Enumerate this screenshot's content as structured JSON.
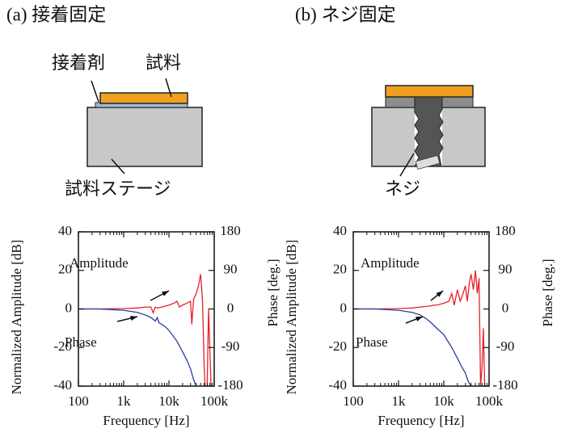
{
  "panels": [
    {
      "title": "(a) 接着固定",
      "labels": [
        "接着剤",
        "試料",
        "試料ステージ"
      ]
    },
    {
      "title": "(b) ネジ固定",
      "labels": [
        "ネジ"
      ]
    }
  ],
  "chart_data": [
    {
      "type": "line",
      "xlabel": "Frequency [Hz]",
      "ylabel": "Normalized Amplitude [dB]",
      "y2label": "Phase [deg.]",
      "log_x": true,
      "grid": false,
      "xlim": [
        100,
        100000
      ],
      "xticks": [
        100,
        {
          "value": 1000,
          "label": "1k"
        },
        {
          "value": 10000,
          "label": "10k"
        },
        {
          "value": 100000,
          "label": "100k"
        }
      ],
      "ylim": [
        -40,
        40
      ],
      "yticks": [
        -40,
        -20,
        0,
        20,
        40
      ],
      "y2lim": [
        -180,
        180
      ],
      "y2ticks": [
        -180,
        -90,
        0,
        90,
        180
      ],
      "series": [
        {
          "name": "Amplitude",
          "color": "#e8202a",
          "x": [
            100,
            300,
            1000,
            2000,
            3000,
            4000,
            4500,
            5000,
            5500,
            7000,
            10000,
            13000,
            15000,
            17000,
            20000,
            25000,
            30000,
            32000,
            35000,
            40000,
            45000,
            50000,
            55000,
            60000,
            63000,
            70000,
            75000,
            80000,
            85000
          ],
          "values": [
            0,
            0,
            0.2,
            0.5,
            1,
            1,
            -2,
            1,
            0.5,
            1,
            2,
            3,
            4,
            1,
            2,
            3,
            4,
            -8,
            5,
            8,
            12,
            18,
            5,
            -30,
            -40,
            -40,
            0,
            -20,
            -40
          ]
        },
        {
          "name": "Phase",
          "color": "#2a3aa0",
          "axis": "y2",
          "x": [
            100,
            300,
            1000,
            2000,
            3000,
            4000,
            5000,
            5500,
            6000,
            8000,
            10000,
            15000,
            20000,
            25000,
            30000,
            35000,
            40000
          ],
          "values": [
            0,
            0,
            -3,
            -8,
            -14,
            -20,
            -28,
            -20,
            -32,
            -40,
            -50,
            -75,
            -100,
            -120,
            -140,
            -165,
            -180
          ]
        }
      ]
    },
    {
      "type": "line",
      "xlabel": "Frequency [Hz]",
      "ylabel": "Normalized Amplitude [dB]",
      "y2label": "Phase [deg.]",
      "log_x": true,
      "grid": false,
      "xlim": [
        100,
        100000
      ],
      "xticks": [
        100,
        {
          "value": 1000,
          "label": "1k"
        },
        {
          "value": 10000,
          "label": "10k"
        },
        {
          "value": 100000,
          "label": "100k"
        }
      ],
      "ylim": [
        -40,
        40
      ],
      "yticks": [
        -40,
        -20,
        0,
        20,
        40
      ],
      "y2lim": [
        -180,
        180
      ],
      "y2ticks": [
        -180,
        -90,
        0,
        90,
        180
      ],
      "series": [
        {
          "name": "Amplitude",
          "color": "#e8202a",
          "x": [
            100,
            300,
            1000,
            2000,
            3000,
            5000,
            6000,
            7000,
            10000,
            13000,
            15000,
            17000,
            20000,
            23000,
            25000,
            30000,
            33000,
            37000,
            40000,
            45000,
            50000,
            55000,
            60000,
            65000,
            70000,
            75000,
            80000
          ],
          "values": [
            0,
            0,
            0.2,
            0.5,
            1,
            1.5,
            2,
            2,
            3,
            4,
            8,
            2,
            10,
            4,
            6,
            12,
            4,
            14,
            18,
            10,
            20,
            8,
            16,
            -40,
            -30,
            -10,
            -40
          ]
        },
        {
          "name": "Phase",
          "color": "#2a3aa0",
          "axis": "y2",
          "x": [
            100,
            300,
            1000,
            2000,
            3000,
            4000,
            5000,
            7000,
            10000,
            15000,
            20000,
            25000,
            30000,
            35000,
            40000
          ],
          "values": [
            0,
            0,
            -3,
            -8,
            -14,
            -22,
            -30,
            -45,
            -60,
            -90,
            -115,
            -135,
            -150,
            -170,
            -180
          ]
        }
      ]
    }
  ]
}
